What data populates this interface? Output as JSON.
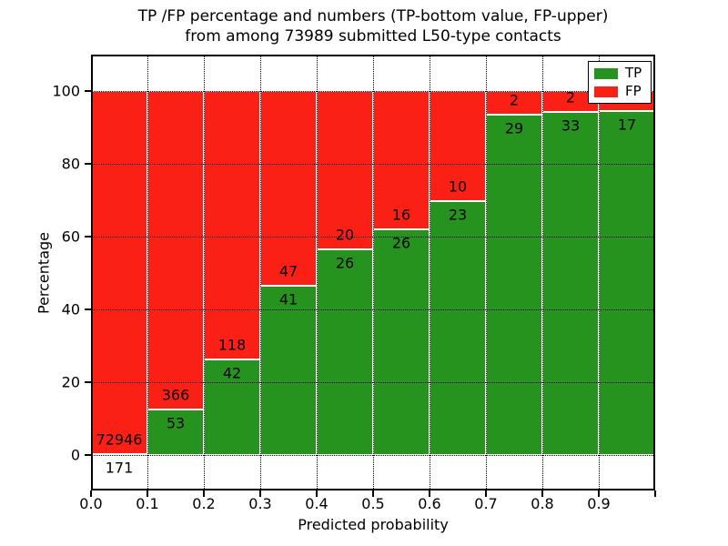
{
  "chart_data": {
    "type": "bar",
    "stacked": true,
    "orientation": "vertical",
    "title_line1": "TP /FP percentage and numbers (TP-bottom value, FP-upper)",
    "title_line2": "from among 73989 submitted L50-type contacts",
    "xlabel": "Predicted probability",
    "ylabel": "Percentage",
    "xlim": [
      0.0,
      1.0
    ],
    "ylim": [
      -10,
      110
    ],
    "x_ticks": [
      "0.0",
      "0.1",
      "0.2",
      "0.3",
      "0.4",
      "0.5",
      "0.6",
      "0.7",
      "0.8",
      "0.9"
    ],
    "y_ticks": [
      0,
      20,
      40,
      60,
      80,
      100
    ],
    "grid": "dotted",
    "colors": {
      "tp": "#27931f",
      "fp": "#fb2015",
      "bar_edge": "#ffffff"
    },
    "legend": {
      "position": "upper right",
      "entries": [
        {
          "label": "TP",
          "color": "#27931f"
        },
        {
          "label": "FP",
          "color": "#fb2015"
        }
      ]
    },
    "bins": [
      {
        "x_start": 0.0,
        "x_end": 0.1,
        "tp_count": 171,
        "fp_count": 72946,
        "tp_pct": 0.2
      },
      {
        "x_start": 0.1,
        "x_end": 0.2,
        "tp_count": 53,
        "fp_count": 366,
        "tp_pct": 12.6
      },
      {
        "x_start": 0.2,
        "x_end": 0.3,
        "tp_count": 42,
        "fp_count": 118,
        "tp_pct": 26.3
      },
      {
        "x_start": 0.3,
        "x_end": 0.4,
        "tp_count": 41,
        "fp_count": 47,
        "tp_pct": 46.6
      },
      {
        "x_start": 0.4,
        "x_end": 0.5,
        "tp_count": 26,
        "fp_count": 20,
        "tp_pct": 56.5
      },
      {
        "x_start": 0.5,
        "x_end": 0.6,
        "tp_count": 26,
        "fp_count": 16,
        "tp_pct": 61.9
      },
      {
        "x_start": 0.6,
        "x_end": 0.7,
        "tp_count": 23,
        "fp_count": 10,
        "tp_pct": 69.7
      },
      {
        "x_start": 0.7,
        "x_end": 0.8,
        "tp_count": 29,
        "fp_count": 2,
        "tp_pct": 93.5
      },
      {
        "x_start": 0.8,
        "x_end": 0.9,
        "tp_count": 33,
        "fp_count": 2,
        "tp_pct": 94.3
      },
      {
        "x_start": 0.9,
        "x_end": 1.0,
        "tp_count": 17,
        "fp_count": null,
        "tp_pct": 94.4
      }
    ]
  }
}
